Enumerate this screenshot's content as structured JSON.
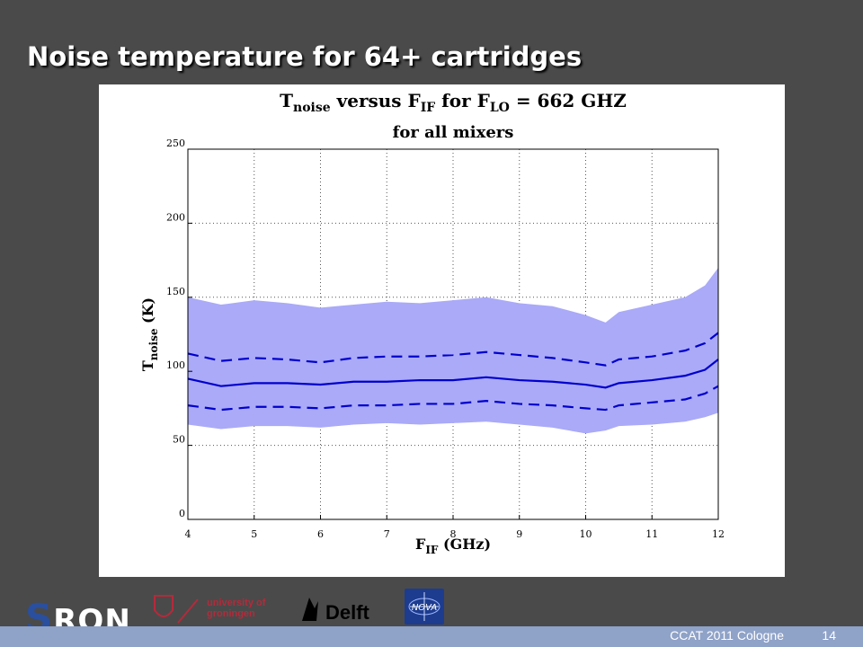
{
  "slide": {
    "title": "Noise temperature for 64+ cartridges",
    "footer": "CCAT 2011 Cologne",
    "page_number": "14"
  },
  "logos": {
    "sron": "RON",
    "rug": [
      "university of",
      "groningen"
    ],
    "tudelft": "Delft",
    "nova": "NOVA"
  },
  "colors": {
    "background": "#4a4a4a",
    "band_fill": "#aaaaf8",
    "line": "#0000cc",
    "footer_bar": "#8fa2c8"
  },
  "chart_data": {
    "type": "area",
    "title_line1_parts": [
      "T",
      "noise",
      " versus F",
      "IF",
      " for F",
      "LO",
      " = 662 GHZ"
    ],
    "title_line2": "for all mixers",
    "xlabel_parts": [
      "F",
      "IF",
      " (GHz)"
    ],
    "ylabel_parts": [
      "T",
      "noise",
      " (K)"
    ],
    "xlim": [
      4,
      12
    ],
    "ylim": [
      0,
      250
    ],
    "xticks": [
      4,
      5,
      6,
      7,
      8,
      9,
      10,
      11,
      12
    ],
    "yticks": [
      0,
      50,
      100,
      150,
      200,
      250
    ],
    "grid": true,
    "x": [
      4,
      4.5,
      5,
      5.5,
      6,
      6.5,
      7,
      7.5,
      8,
      8.5,
      9,
      9.5,
      10,
      10.3,
      10.5,
      11,
      11.5,
      11.8,
      12
    ],
    "series": [
      {
        "style": "band-upper",
        "values": [
          150,
          145,
          148,
          146,
          143,
          145,
          147,
          146,
          148,
          150,
          146,
          144,
          138,
          133,
          140,
          145,
          150,
          158,
          170
        ]
      },
      {
        "style": "dashed-upper",
        "values": [
          112,
          107,
          109,
          108,
          106,
          109,
          110,
          110,
          111,
          113,
          111,
          109,
          106,
          104,
          108,
          110,
          114,
          119,
          126
        ]
      },
      {
        "style": "solid-mean",
        "values": [
          95,
          90,
          92,
          92,
          91,
          93,
          93,
          94,
          94,
          96,
          94,
          93,
          91,
          89,
          92,
          94,
          97,
          101,
          108
        ]
      },
      {
        "style": "dashed-lower",
        "values": [
          77,
          74,
          76,
          76,
          75,
          77,
          77,
          78,
          78,
          80,
          78,
          77,
          75,
          74,
          77,
          79,
          81,
          85,
          90
        ]
      },
      {
        "style": "band-lower",
        "values": [
          64,
          61,
          63,
          63,
          62,
          64,
          65,
          64,
          65,
          66,
          64,
          62,
          58,
          60,
          63,
          64,
          66,
          69,
          72
        ]
      }
    ]
  }
}
